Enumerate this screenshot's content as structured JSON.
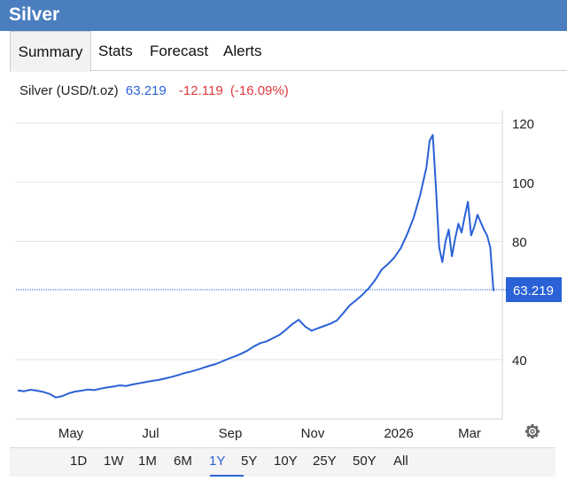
{
  "header": {
    "title": "Silver"
  },
  "tabs": [
    {
      "label": "Summary",
      "active": true
    },
    {
      "label": "Stats"
    },
    {
      "label": "Forecast"
    },
    {
      "label": "Alerts"
    }
  ],
  "quote": {
    "symbol": "Silver (USD/t.oz)",
    "price": "63.219",
    "change": "-12.119",
    "change_pct": "(-16.09%)"
  },
  "ranges": [
    "1D",
    "1W",
    "1M",
    "6M",
    "1Y",
    "5Y",
    "10Y",
    "25Y",
    "50Y",
    "All"
  ],
  "active_range": "1Y",
  "colors": {
    "header": "#4a7ebf",
    "line": "#2a61d6",
    "negative": "#e0393e"
  },
  "icons": {
    "settings": "gear-icon"
  },
  "chart_data": {
    "type": "line",
    "series": [
      {
        "values": [
          [
            0,
            29.6
          ],
          [
            2,
            29.3
          ],
          [
            4,
            29.8
          ],
          [
            6,
            29.5
          ],
          [
            8,
            29.1
          ],
          [
            10,
            28.4
          ],
          [
            12,
            27.2
          ],
          [
            14,
            27.7
          ],
          [
            16,
            28.6
          ],
          [
            18,
            29.2
          ],
          [
            20,
            29.5
          ],
          [
            22,
            29.9
          ],
          [
            24,
            29.7
          ],
          [
            26,
            30.2
          ],
          [
            28,
            30.6
          ],
          [
            30,
            30.9
          ],
          [
            32,
            31.3
          ],
          [
            34,
            31.1
          ],
          [
            36,
            31.6
          ],
          [
            38,
            32.0
          ],
          [
            40,
            32.4
          ],
          [
            42,
            32.8
          ],
          [
            44,
            33.1
          ],
          [
            46,
            33.6
          ],
          [
            48,
            34.1
          ],
          [
            50,
            34.7
          ],
          [
            52,
            35.4
          ],
          [
            54,
            35.9
          ],
          [
            56,
            36.5
          ],
          [
            58,
            37.2
          ],
          [
            60,
            37.9
          ],
          [
            62,
            38.5
          ],
          [
            64,
            39.4
          ],
          [
            66,
            40.3
          ],
          [
            68,
            41.1
          ],
          [
            70,
            42.0
          ],
          [
            72,
            43.1
          ],
          [
            74,
            44.5
          ],
          [
            76,
            45.6
          ],
          [
            78,
            46.2
          ],
          [
            80,
            47.3
          ],
          [
            82,
            48.4
          ],
          [
            84,
            50.1
          ],
          [
            86,
            52.0
          ],
          [
            88,
            53.5
          ],
          [
            90,
            51.2
          ],
          [
            92,
            49.8
          ],
          [
            94,
            50.6
          ],
          [
            96,
            51.4
          ],
          [
            98,
            52.2
          ],
          [
            100,
            53.3
          ],
          [
            102,
            55.8
          ],
          [
            104,
            58.4
          ],
          [
            106,
            60.1
          ],
          [
            108,
            62.0
          ],
          [
            110,
            64.2
          ],
          [
            112,
            67.0
          ],
          [
            114,
            70.5
          ],
          [
            116,
            72.4
          ],
          [
            118,
            74.6
          ],
          [
            120,
            77.8
          ],
          [
            122,
            82.5
          ],
          [
            124,
            88.0
          ],
          [
            126,
            95.5
          ],
          [
            128,
            105.0
          ],
          [
            129,
            114.0
          ],
          [
            130,
            116.0
          ],
          [
            131,
            98.0
          ],
          [
            132,
            78.0
          ],
          [
            133,
            73.0
          ],
          [
            134,
            80.0
          ],
          [
            135,
            84.0
          ],
          [
            136,
            75.0
          ],
          [
            137,
            81.0
          ],
          [
            138,
            86.0
          ],
          [
            139,
            83.0
          ],
          [
            140,
            88.5
          ],
          [
            141,
            93.4
          ],
          [
            142,
            82.0
          ],
          [
            143,
            85.0
          ],
          [
            144,
            89.0
          ],
          [
            145,
            86.5
          ],
          [
            146,
            84.0
          ],
          [
            147,
            82.0
          ],
          [
            148,
            78.0
          ],
          [
            149,
            63.2
          ]
        ]
      }
    ],
    "x_ticks": [
      "May",
      "Jul",
      "Sep",
      "Nov",
      "2026",
      "Mar"
    ],
    "y_ticks": [
      "40",
      "80",
      "100",
      "120"
    ],
    "y_axis_side": "right",
    "ylim": [
      20,
      125
    ],
    "last_value_label": "63.219"
  }
}
